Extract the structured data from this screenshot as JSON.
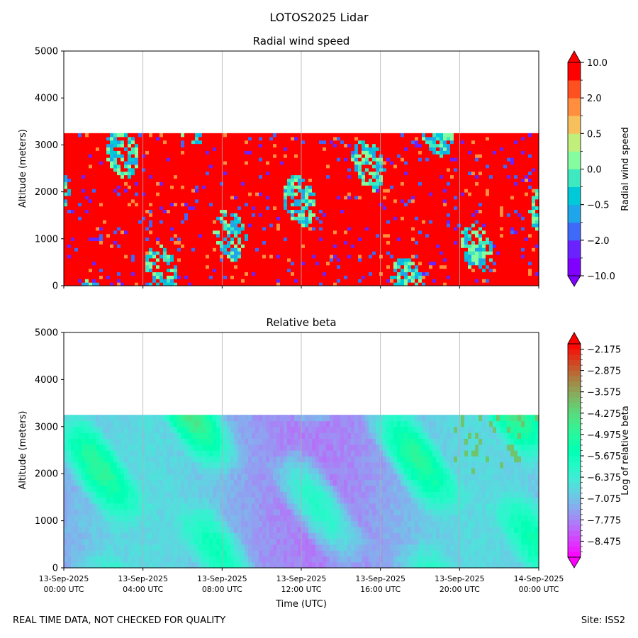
{
  "figure": {
    "suptitle": "LOTOS2025 Lidar",
    "footer_left": "REAL TIME DATA, NOT CHECKED FOR QUALITY",
    "footer_right": "Site: ISS2"
  },
  "chart_data": [
    {
      "type": "heatmap",
      "title": "Radial wind speed",
      "xlabel": "",
      "ylabel": "Altitude (meters)",
      "x_range": [
        "13-Sep-2025 00:00 UTC",
        "14-Sep-2025 00:00 UTC"
      ],
      "ylim": [
        0,
        5000
      ],
      "yticks": [
        "0",
        "1000",
        "2000",
        "3000",
        "4000",
        "5000"
      ],
      "xticks": [],
      "data_top_altitude": 3250,
      "grid": "vertical lines at x ticks",
      "colorbar": {
        "label": "Radial wind speed",
        "tick_labels": [
          "10.0",
          "2.0",
          "0.5",
          "0.0",
          "−0.5",
          "−2.0",
          "−10.0"
        ],
        "colors": [
          "#7f00ff",
          "#6a23fe",
          "#3f6af9",
          "#1ea5ea",
          "#00c9d8",
          "#3ee8c1",
          "#84fc9f",
          "#c1ef7c",
          "#f6c15c",
          "#ff8f3f",
          "#ff5020",
          "#ff0000"
        ],
        "extend": "both"
      }
    },
    {
      "type": "heatmap",
      "title": "Relative beta",
      "xlabel": "Time (UTC)",
      "ylabel": "Altitude (meters)",
      "x_range": [
        "13-Sep-2025 00:00 UTC",
        "14-Sep-2025 00:00 UTC"
      ],
      "ylim": [
        0,
        5000
      ],
      "yticks": [
        "0",
        "1000",
        "2000",
        "3000",
        "4000",
        "5000"
      ],
      "xticks": [
        {
          "date": "13-Sep-2025",
          "time": "00:00 UTC"
        },
        {
          "date": "13-Sep-2025",
          "time": "04:00 UTC"
        },
        {
          "date": "13-Sep-2025",
          "time": "08:00 UTC"
        },
        {
          "date": "13-Sep-2025",
          "time": "12:00 UTC"
        },
        {
          "date": "13-Sep-2025",
          "time": "16:00 UTC"
        },
        {
          "date": "13-Sep-2025",
          "time": "20:00 UTC"
        },
        {
          "date": "14-Sep-2025",
          "time": "00:00 UTC"
        }
      ],
      "data_top_altitude": 3250,
      "grid": "vertical lines at x ticks",
      "colorbar": {
        "label": "Log of relative beta",
        "tick_labels": [
          "−2.175",
          "−2.875",
          "−3.575",
          "−4.275",
          "−4.975",
          "−5.675",
          "−6.375",
          "−7.075",
          "−7.775",
          "−8.475"
        ],
        "range": [
          -9.0,
          -2.0
        ],
        "extend": "both"
      }
    }
  ]
}
